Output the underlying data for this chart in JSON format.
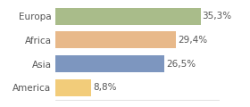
{
  "categories": [
    "America",
    "Asia",
    "Africa",
    "Europa"
  ],
  "values": [
    8.8,
    26.5,
    29.4,
    35.3
  ],
  "labels": [
    "8,8%",
    "26,5%",
    "29,4%",
    "35,3%"
  ],
  "bar_colors": [
    "#f2cc7a",
    "#7d96bf",
    "#e8b98a",
    "#a9bc8a"
  ],
  "background_color": "#ffffff",
  "xlim": [
    0,
    40
  ],
  "bar_height": 0.72,
  "label_fontsize": 7.5,
  "tick_fontsize": 7.5,
  "text_color": "#555555"
}
